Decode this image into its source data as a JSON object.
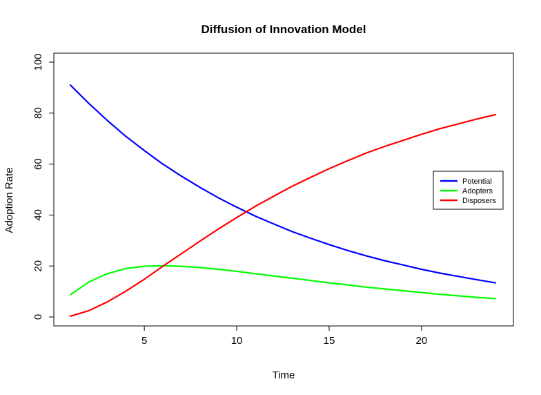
{
  "chart_data": {
    "type": "line",
    "title": "Diffusion of Innovation Model",
    "xlabel": "Time",
    "ylabel": "Adoption Rate",
    "xlim": [
      1,
      24
    ],
    "ylim": [
      0,
      100
    ],
    "x_ticks": [
      5,
      10,
      15,
      20
    ],
    "y_ticks": [
      0,
      20,
      40,
      60,
      80,
      100
    ],
    "grid": false,
    "legend_position": "right",
    "x": [
      1,
      2,
      3,
      4,
      5,
      6,
      7,
      8,
      9,
      10,
      11,
      12,
      13,
      14,
      15,
      16,
      17,
      18,
      19,
      20,
      21,
      22,
      23,
      24
    ],
    "series": [
      {
        "name": "Potential",
        "color": "#0000ff",
        "values": [
          91.0,
          83.8,
          77.1,
          70.9,
          65.3,
          60.0,
          55.3,
          50.9,
          46.8,
          43.1,
          39.6,
          36.5,
          33.5,
          30.9,
          28.4,
          26.1,
          24.0,
          22.1,
          20.4,
          18.7,
          17.2,
          15.9,
          14.6,
          13.4
        ]
      },
      {
        "name": "Adopters",
        "color": "#00ff00",
        "values": [
          8.7,
          13.7,
          17.0,
          19.0,
          19.9,
          20.1,
          19.9,
          19.4,
          18.7,
          17.9,
          17.0,
          16.1,
          15.2,
          14.3,
          13.4,
          12.6,
          11.7,
          11.0,
          10.3,
          9.6,
          8.9,
          8.3,
          7.7,
          7.2
        ]
      },
      {
        "name": "Disposers",
        "color": "#ff0000",
        "values": [
          0.3,
          2.5,
          5.9,
          10.1,
          14.8,
          19.9,
          24.8,
          29.7,
          34.5,
          39.0,
          43.4,
          47.4,
          51.3,
          54.8,
          58.2,
          61.3,
          64.3,
          66.9,
          69.3,
          71.7,
          73.9,
          75.8,
          77.7,
          79.4
        ]
      }
    ]
  }
}
